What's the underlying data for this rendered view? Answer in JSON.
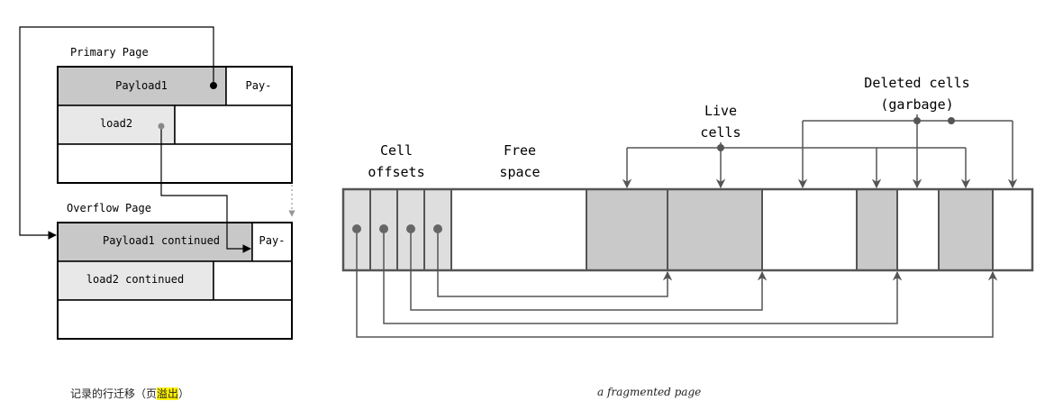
{
  "left_diagram": {
    "primary_label": "Primary Page",
    "overflow_label": "Overflow Page",
    "payload1": "Payload1",
    "pay_dash_1": "Pay-",
    "load2": "load2",
    "payload1_continued": "Payload1 continued",
    "pay_dash_2": "Pay-",
    "load2_continued": "load2 continued",
    "caption_main": "记录的行迁移（页",
    "caption_highlight": "溢出",
    "caption_end": "）"
  },
  "right_diagram": {
    "cell_offsets_line1": "Cell",
    "cell_offsets_line2": "offsets",
    "free_space_line1": "Free",
    "free_space_line2": "space",
    "live_cells_line1": "Live",
    "live_cells_line2": "cells",
    "deleted_cells_line1": "Deleted cells",
    "deleted_cells_line2": "(garbage)",
    "caption": "a fragmented page"
  },
  "colors": {
    "dark_cell": "#c8c8c8",
    "light_cell": "#e8e8e8",
    "live_cell": "#c9c9c9",
    "offset_cell": "#dedede",
    "line": "#555555",
    "border": "#000000",
    "highlight": "#fff200"
  }
}
